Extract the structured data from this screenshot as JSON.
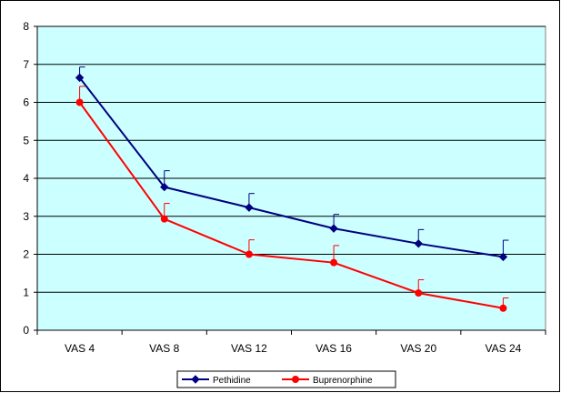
{
  "chart_data": {
    "type": "line",
    "categories": [
      "VAS 4",
      "VAS 8",
      "VAS 12",
      "VAS 16",
      "VAS 20",
      "VAS 24"
    ],
    "ylim": [
      0,
      8
    ],
    "yticks": [
      0,
      1,
      2,
      3,
      4,
      5,
      6,
      7,
      8
    ],
    "grid": true,
    "legend_position": "bottom",
    "plot_background": "#ccffff",
    "series": [
      {
        "name": "Pethidine",
        "color": "#000080",
        "marker": "diamond",
        "values": [
          6.65,
          3.77,
          3.23,
          2.68,
          2.28,
          1.93
        ],
        "error_upper": [
          0.28,
          0.43,
          0.37,
          0.37,
          0.37,
          0.44
        ]
      },
      {
        "name": "Buprenorphine",
        "color": "#ff0000",
        "marker": "circle",
        "values": [
          6.0,
          2.93,
          2.0,
          1.78,
          0.98,
          0.58
        ],
        "error_upper": [
          0.42,
          0.41,
          0.38,
          0.45,
          0.35,
          0.27
        ]
      }
    ]
  }
}
